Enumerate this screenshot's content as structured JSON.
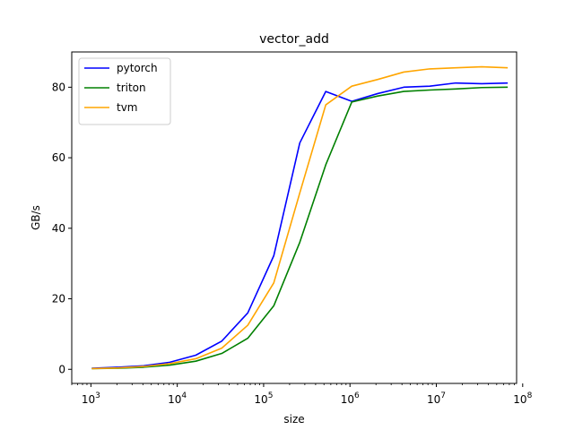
{
  "chart_data": {
    "type": "line",
    "title": "vector_add",
    "xlabel": "size",
    "ylabel": "GB/s",
    "xscale": "log",
    "xlim": [
      600,
      85000000
    ],
    "ylim": [
      -4,
      90
    ],
    "yticks": [
      0,
      20,
      40,
      60,
      80
    ],
    "xticks": [
      {
        "value": 1000,
        "base": "10",
        "exp": "3"
      },
      {
        "value": 10000,
        "base": "10",
        "exp": "4"
      },
      {
        "value": 100000,
        "base": "10",
        "exp": "5"
      },
      {
        "value": 1000000,
        "base": "10",
        "exp": "6"
      },
      {
        "value": 10000000,
        "base": "10",
        "exp": "7"
      },
      {
        "value": 100000000,
        "base": "10",
        "exp": "8"
      }
    ],
    "grid": false,
    "legend": "top-left",
    "x": [
      1024,
      2048,
      4096,
      8192,
      16384,
      32768,
      65536,
      131072,
      262144,
      524288,
      1048576,
      2097152,
      4194304,
      8388608,
      16777216,
      33554432,
      67108864
    ],
    "series": [
      {
        "name": "pytorch",
        "color": "#0000ff",
        "values": [
          0.3,
          0.6,
          1.0,
          2.0,
          4.0,
          8.0,
          16.0,
          32.2,
          64.2,
          78.8,
          76.0,
          78.2,
          80.0,
          80.3,
          81.2,
          81.0,
          81.2
        ]
      },
      {
        "name": "triton",
        "color": "#008000",
        "values": [
          0.2,
          0.3,
          0.6,
          1.2,
          2.3,
          4.5,
          8.8,
          18.0,
          36.0,
          58.0,
          75.8,
          77.5,
          78.8,
          79.2,
          79.5,
          79.9,
          80.0
        ]
      },
      {
        "name": "tvm",
        "color": "#ffa500",
        "values": [
          0.2,
          0.4,
          0.8,
          1.6,
          3.0,
          6.0,
          12.5,
          24.5,
          50.0,
          75.0,
          80.3,
          82.2,
          84.3,
          85.2,
          85.5,
          85.8,
          85.5
        ]
      }
    ]
  }
}
